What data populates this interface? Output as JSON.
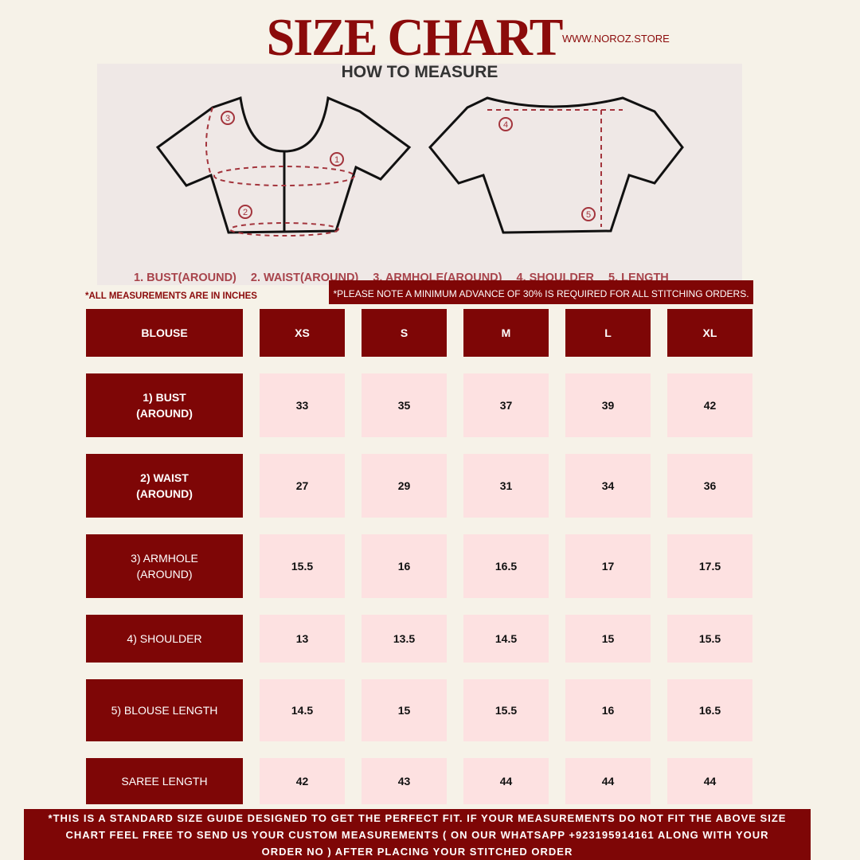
{
  "header": {
    "title": "SIZE CHART",
    "website": "WWW.NOROZ.STORE"
  },
  "illustration": {
    "title": "HOW TO MEASURE",
    "markers": [
      "1",
      "2",
      "3",
      "4",
      "5"
    ],
    "legend": [
      "1. BUST(AROUND)",
      "2. WAIST(AROUND)",
      "3. ARMHOLE(AROUND)",
      "4. SHOULDER",
      "5. LENGTH"
    ]
  },
  "units_note": "*ALL MEASUREMENTS ARE IN INCHES",
  "advance_note": "*PLEASE NOTE A MINIMUM ADVANCE OF 30% IS REQUIRED FOR ALL STITCHING ORDERS.",
  "colors": {
    "brand": "#7e0606",
    "cell": "#fde1e1",
    "background": "#f6f2e8"
  },
  "table": {
    "header": [
      "BLOUSE",
      "XS",
      "S",
      "M",
      "L",
      "XL"
    ],
    "rows": [
      {
        "label": [
          "1) BUST",
          "(AROUND)"
        ],
        "values": [
          "33",
          "35",
          "37",
          "39",
          "42"
        ]
      },
      {
        "label": [
          "2) WAIST",
          "(AROUND)"
        ],
        "values": [
          "27",
          "29",
          "31",
          "34",
          "36"
        ]
      },
      {
        "label": [
          "3) ARMHOLE",
          "(AROUND)"
        ],
        "values": [
          "15.5",
          "16",
          "16.5",
          "17",
          "17.5"
        ]
      },
      {
        "label": [
          "4) SHOULDER"
        ],
        "values": [
          "13",
          "13.5",
          "14.5",
          "15",
          "15.5"
        ]
      },
      {
        "label": [
          "5) BLOUSE LENGTH"
        ],
        "values": [
          "14.5",
          "15",
          "15.5",
          "16",
          "16.5"
        ]
      },
      {
        "label": [
          "SAREE LENGTH"
        ],
        "values": [
          "42",
          "43",
          "44",
          "44",
          "44"
        ]
      }
    ]
  },
  "footer": [
    "*THIS IS A STANDARD SIZE GUIDE DESIGNED TO GET THE PERFECT FIT. IF YOUR MEASUREMENTS DO NOT FIT THE ABOVE SIZE",
    "CHART FEEL FREE TO SEND US YOUR CUSTOM MEASUREMENTS ( ON OUR WHATSAPP +923195914161 ALONG WITH YOUR",
    "ORDER NO ) AFTER PLACING YOUR STITCHED ORDER"
  ]
}
